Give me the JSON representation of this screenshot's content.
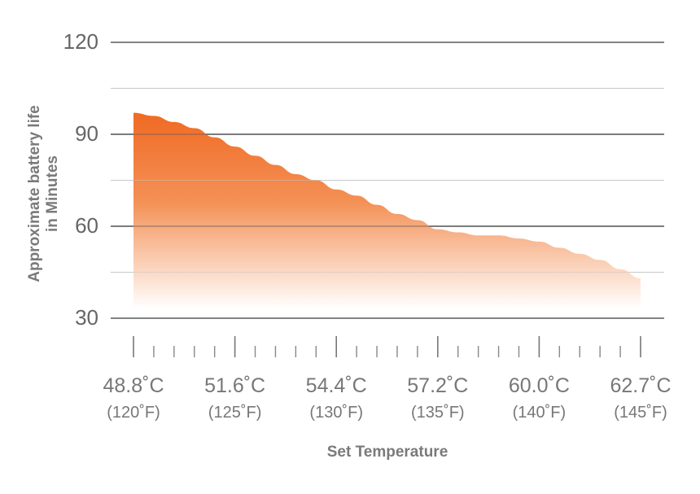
{
  "chart_data": {
    "type": "area",
    "ylabel": [
      "Approximate battery life",
      "in Minutes"
    ],
    "xlabel": "Set Temperature",
    "ylim": [
      30,
      120
    ],
    "yticks": [
      120,
      90,
      60,
      30
    ],
    "grid": true,
    "x_tick_labels": [
      {
        "celsius": "48.8˚C",
        "fahrenheit": "(120˚F)"
      },
      {
        "celsius": "51.6˚C",
        "fahrenheit": "(125˚F)"
      },
      {
        "celsius": "54.4˚C",
        "fahrenheit": "(130˚F)"
      },
      {
        "celsius": "57.2˚C",
        "fahrenheit": "(135˚F)"
      },
      {
        "celsius": "60.0˚C",
        "fahrenheit": "(140˚F)"
      },
      {
        "celsius": "62.7˚C",
        "fahrenheit": "(145˚F)"
      }
    ],
    "x_domain": [
      120,
      145
    ],
    "series": [
      {
        "x": [
          120,
          121,
          122,
          123,
          124,
          125,
          126,
          127,
          128,
          129,
          130,
          131,
          132,
          133,
          134,
          135,
          136,
          137,
          138,
          139,
          140,
          141,
          142,
          143,
          144,
          145
        ],
        "values": [
          97,
          96,
          94,
          92,
          89,
          86,
          83,
          80,
          77,
          75,
          72,
          70,
          67,
          64,
          62,
          59,
          58,
          57,
          57,
          56,
          55,
          53,
          51,
          49,
          46,
          43
        ],
        "color_top": "#f06a23",
        "color_bottom": "#ffffff"
      }
    ]
  }
}
